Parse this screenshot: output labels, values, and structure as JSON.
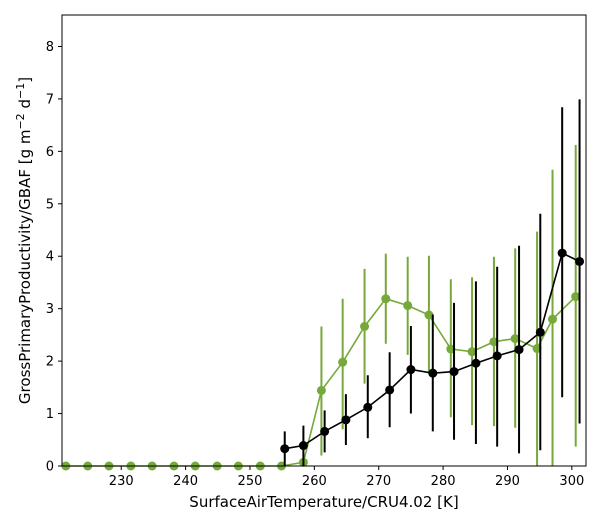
{
  "chart_data": {
    "type": "line",
    "xlabel": "SurfaceAirTemperature/CRU4.02 [K]",
    "ylabel": "GrossPrimaryProductivity/GBAF [g m",
    "ylabel_sup1": "−2",
    "ylabel_mid": " d",
    "ylabel_sup2": "−1",
    "ylabel_end": "]",
    "xlim": [
      220.8,
      302.2
    ],
    "ylim": [
      0,
      8.6
    ],
    "xticks": [
      230,
      240,
      250,
      260,
      270,
      280,
      290,
      300
    ],
    "yticks": [
      0,
      1,
      2,
      3,
      4,
      5,
      6,
      7,
      8
    ],
    "grid": false,
    "series": [
      {
        "color": "#76a83a",
        "x": [
          221.4,
          224.8,
          228.1,
          231.5,
          234.8,
          238.2,
          241.5,
          244.9,
          248.2,
          251.6,
          254.9,
          258.3,
          261.1,
          264.4,
          267.8,
          271.1,
          274.5,
          277.8,
          281.2,
          284.5,
          287.9,
          291.2,
          294.6,
          297.0,
          300.6
        ],
        "y": [
          0.0,
          0.0,
          0.0,
          0.0,
          0.0,
          0.0,
          0.0,
          0.0,
          0.0,
          0.0,
          0.0,
          0.07,
          1.44,
          1.98,
          2.66,
          3.19,
          3.06,
          2.88,
          2.23,
          2.18,
          2.37,
          2.43,
          2.24,
          2.8,
          3.23
        ],
        "err_low": [
          0,
          0,
          0,
          0,
          0,
          0,
          0,
          0,
          0,
          0,
          0,
          0,
          0.2,
          0.7,
          1.57,
          2.33,
          2.12,
          1.76,
          0.93,
          0.78,
          0.76,
          0.73,
          0.0,
          0.0,
          0.37
        ],
        "err_high": [
          0,
          0,
          0,
          0,
          0,
          0,
          0,
          0,
          0,
          0,
          0,
          0.16,
          2.66,
          3.19,
          3.76,
          4.05,
          3.99,
          4.01,
          3.56,
          3.6,
          3.99,
          4.15,
          4.47,
          5.65,
          6.12
        ]
      },
      {
        "color": "#000000",
        "x": [
          255.4,
          258.3,
          261.6,
          264.9,
          268.3,
          271.7,
          275.0,
          278.4,
          281.7,
          285.1,
          288.4,
          291.8,
          295.1,
          298.5,
          301.2
        ],
        "y": [
          0.33,
          0.39,
          0.66,
          0.88,
          1.12,
          1.45,
          1.84,
          1.77,
          1.8,
          1.96,
          2.1,
          2.22,
          2.55,
          4.06,
          3.9
        ],
        "err_low": [
          0.0,
          0.0,
          0.26,
          0.4,
          0.53,
          0.74,
          1.0,
          0.66,
          0.5,
          0.42,
          0.37,
          0.24,
          0.3,
          1.31,
          0.81
        ],
        "err_high": [
          0.66,
          0.77,
          1.06,
          1.37,
          1.73,
          2.17,
          2.67,
          2.89,
          3.11,
          3.52,
          3.8,
          4.2,
          4.81,
          6.84,
          6.99
        ]
      }
    ]
  }
}
